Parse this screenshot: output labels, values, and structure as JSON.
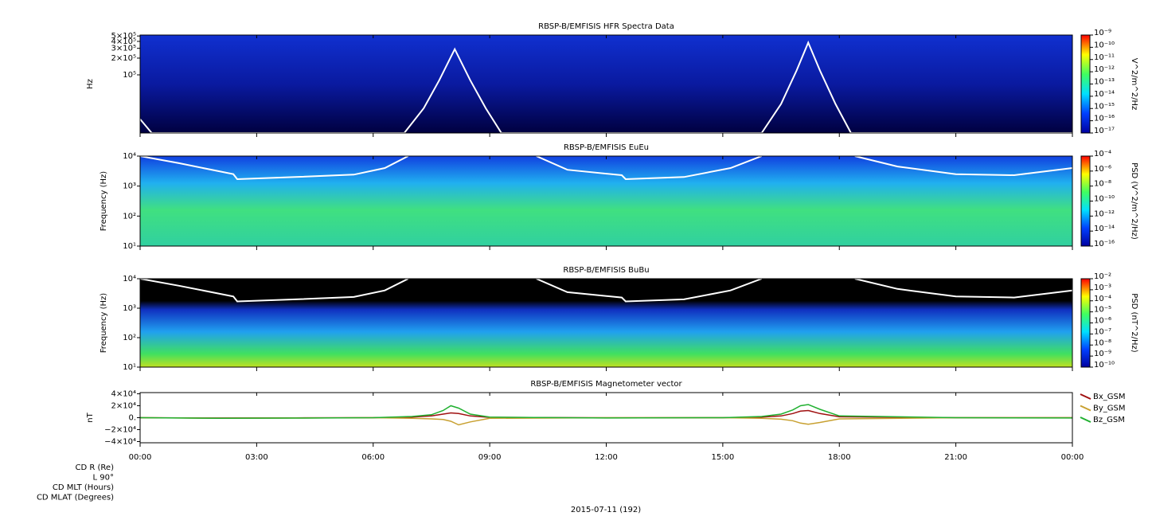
{
  "chart_data": [
    {
      "type": "spectrogram",
      "title": "RBSP-B/EMFISIS  HFR Spectra Data",
      "ylabel": "Hz",
      "log": true,
      "ylim": [
        9000,
        520000
      ],
      "yticks": [
        {
          "value": 500000,
          "label": "5×10⁵"
        },
        {
          "value": 400000,
          "label": "4×10⁵"
        },
        {
          "value": 300000,
          "label": "3×10⁵"
        },
        {
          "value": 200000,
          "label": "2×10⁵"
        },
        {
          "value": 100000,
          "label": "10⁵"
        }
      ],
      "colorbar_label": "V^2/m^2/Hz",
      "clim": [
        1e-17,
        1e-09
      ],
      "cticks": [
        {
          "value": 1e-09,
          "label": "10⁻⁹"
        },
        {
          "value": 1e-10,
          "label": "10⁻¹⁰"
        },
        {
          "value": 1e-11,
          "label": "10⁻¹¹"
        },
        {
          "value": 1e-12,
          "label": "10⁻¹²"
        },
        {
          "value": 1e-13,
          "label": "10⁻¹³"
        },
        {
          "value": 1e-14,
          "label": "10⁻¹⁴"
        },
        {
          "value": 1e-15,
          "label": "10⁻¹⁵"
        },
        {
          "value": 1e-16,
          "label": "10⁻¹⁶"
        },
        {
          "value": 1e-17,
          "label": "10⁻¹⁷"
        }
      ],
      "series": [
        {
          "color": "#ffffff",
          "x": [
            0,
            0.3,
            6.8,
            7.3,
            7.7,
            8.1,
            8.5,
            8.9,
            9.3,
            16.0,
            16.5,
            16.9,
            17.2,
            17.5,
            17.9,
            18.3,
            24
          ],
          "values": [
            16000,
            9000,
            9000,
            25000,
            80000,
            290000,
            80000,
            25000,
            9000,
            9000,
            30000,
            120000,
            380000,
            120000,
            30000,
            9000,
            9000
          ]
        }
      ]
    },
    {
      "type": "spectrogram",
      "title": "RBSP-B/EMFISIS  EuEu",
      "ylabel": "Frequency (Hz)",
      "log": true,
      "ylim": [
        10,
        10000
      ],
      "yticks": [
        {
          "value": 10000,
          "label": "10⁴"
        },
        {
          "value": 1000,
          "label": "10³"
        },
        {
          "value": 100,
          "label": "10²"
        },
        {
          "value": 10,
          "label": "10¹"
        }
      ],
      "colorbar_label": "PSD (V^2/m^2/Hz)",
      "clim": [
        1e-16,
        0.0001
      ],
      "cticks": [
        {
          "value": 0.0001,
          "label": "10⁻⁴"
        },
        {
          "value": 1e-06,
          "label": "10⁻⁶"
        },
        {
          "value": 1e-08,
          "label": "10⁻⁸"
        },
        {
          "value": 1e-10,
          "label": "10⁻¹⁰"
        },
        {
          "value": 1e-12,
          "label": "10⁻¹²"
        },
        {
          "value": 1e-14,
          "label": "10⁻¹⁴"
        },
        {
          "value": 1e-16,
          "label": "10⁻¹⁶"
        }
      ],
      "series": [
        {
          "color": "#ffffff",
          "x": [
            0,
            1.0,
            2.4,
            2.5,
            4.0,
            5.5,
            6.3,
            6.9,
            8.5,
            10.2,
            11.0,
            12.4,
            12.5,
            14.0,
            15.2,
            16.0,
            17.2,
            18.4,
            19.5,
            21.0,
            22.5,
            24
          ],
          "values": [
            10000,
            5800,
            2500,
            1700,
            2000,
            2400,
            4000,
            10000,
            null,
            10000,
            3500,
            2300,
            1700,
            2000,
            4000,
            10000,
            null,
            10000,
            4500,
            2500,
            2300,
            4000
          ]
        }
      ]
    },
    {
      "type": "spectrogram",
      "title": "RBSP-B/EMFISIS  BuBu",
      "ylabel": "Frequency (Hz)",
      "log": true,
      "ylim": [
        10,
        10000
      ],
      "yticks": [
        {
          "value": 10000,
          "label": "10⁴"
        },
        {
          "value": 1000,
          "label": "10³"
        },
        {
          "value": 100,
          "label": "10²"
        },
        {
          "value": 10,
          "label": "10¹"
        }
      ],
      "colorbar_label": "PSD (nT^2/Hz)",
      "clim": [
        1e-10,
        0.01
      ],
      "cticks": [
        {
          "value": 0.01,
          "label": "10⁻²"
        },
        {
          "value": 0.001,
          "label": "10⁻³"
        },
        {
          "value": 0.0001,
          "label": "10⁻⁴"
        },
        {
          "value": 1e-05,
          "label": "10⁻⁵"
        },
        {
          "value": 1e-06,
          "label": "10⁻⁶"
        },
        {
          "value": 1e-07,
          "label": "10⁻⁷"
        },
        {
          "value": 1e-08,
          "label": "10⁻⁸"
        },
        {
          "value": 1e-09,
          "label": "10⁻⁹"
        },
        {
          "value": 1e-10,
          "label": "10⁻¹⁰"
        }
      ],
      "series": [
        {
          "color": "#ffffff",
          "x": [
            0,
            1.0,
            2.4,
            2.5,
            4.0,
            5.5,
            6.3,
            6.9,
            8.5,
            10.2,
            11.0,
            12.4,
            12.5,
            14.0,
            15.2,
            16.0,
            17.2,
            18.4,
            19.5,
            21.0,
            22.5,
            24
          ],
          "values": [
            10000,
            5800,
            2500,
            1700,
            2000,
            2400,
            4000,
            10000,
            null,
            10000,
            3500,
            2300,
            1700,
            2000,
            4000,
            10000,
            null,
            10000,
            4500,
            2500,
            2300,
            4000
          ]
        }
      ]
    },
    {
      "type": "line",
      "title": "RBSP-B/EMFISIS  Magnetometer vector",
      "ylabel": "nT",
      "ylim": [
        -42000,
        42000
      ],
      "yticks": [
        {
          "value": 40000,
          "label": "4×10⁴"
        },
        {
          "value": 20000,
          "label": "2×10⁴"
        },
        {
          "value": 0,
          "label": "0."
        },
        {
          "value": -20000,
          "label": "−2×10⁴"
        },
        {
          "value": -40000,
          "label": "−4×10⁴"
        }
      ],
      "xlim": [
        0,
        24
      ],
      "xticks": [
        {
          "value": 0,
          "label": "00:00"
        },
        {
          "value": 3,
          "label": "03:00"
        },
        {
          "value": 6,
          "label": "06:00"
        },
        {
          "value": 9,
          "label": "09:00"
        },
        {
          "value": 12,
          "label": "12:00"
        },
        {
          "value": 15,
          "label": "15:00"
        },
        {
          "value": 18,
          "label": "18:00"
        },
        {
          "value": 21,
          "label": "21:00"
        },
        {
          "value": 24,
          "label": "00:00"
        }
      ],
      "legend": "right",
      "x": [
        0,
        2,
        4,
        6,
        7,
        7.5,
        7.8,
        8.0,
        8.2,
        8.5,
        9,
        12,
        15,
        16,
        16.5,
        16.8,
        17.0,
        17.2,
        17.5,
        18,
        21,
        24
      ],
      "series": [
        {
          "name": "Bx_GSM",
          "color": "#a01010",
          "values": [
            0,
            -500,
            -300,
            0,
            1000,
            3000,
            6000,
            8000,
            7000,
            3000,
            500,
            -200,
            0,
            1000,
            3000,
            7000,
            11000,
            12000,
            7000,
            1500,
            0,
            0
          ]
        },
        {
          "name": "By_GSM",
          "color": "#c8a030",
          "values": [
            0,
            -800,
            -500,
            0,
            -1000,
            -2000,
            -3000,
            -6000,
            -12000,
            -7000,
            -1000,
            0,
            0,
            -1000,
            -2500,
            -5000,
            -9000,
            -11000,
            -8000,
            -2000,
            0,
            0
          ]
        },
        {
          "name": "Bz_GSM",
          "color": "#20b030",
          "values": [
            0,
            -1000,
            -700,
            0,
            2000,
            5000,
            12000,
            20000,
            16000,
            6000,
            1000,
            -500,
            0,
            2000,
            6000,
            13000,
            20000,
            22000,
            14000,
            3000,
            0,
            -500
          ]
        }
      ]
    }
  ],
  "footer": {
    "row_labels": [
      "CD R (Re)",
      "L 90°",
      "CD MLT (Hours)",
      "CD MLAT (Degrees)"
    ],
    "date": "2015-07-11 (192)"
  }
}
